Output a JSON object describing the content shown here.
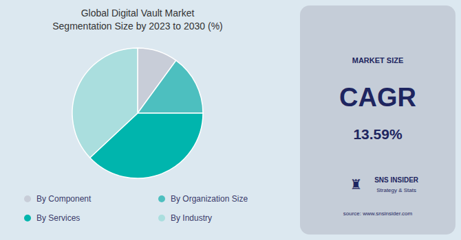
{
  "chart_data": {
    "type": "pie",
    "title": "Global Digital Vault Market\nSegmentation Size by 2023 to 2030 (%)",
    "categories": [
      "By Component",
      "By Organization Size",
      "By Services",
      "By Industry"
    ],
    "values": [
      10,
      15,
      38,
      37
    ],
    "colors": [
      "#c8cdd8",
      "#4dbfbf",
      "#00b5ad",
      "#aadede"
    ],
    "legend": "bottom",
    "annotations": [
      "MARKET SIZE",
      "CAGR",
      "13.59%",
      "♜",
      "SNS INSIDER",
      "Strategy & Stats",
      "source: www.snsinsider.com"
    ]
  }
}
